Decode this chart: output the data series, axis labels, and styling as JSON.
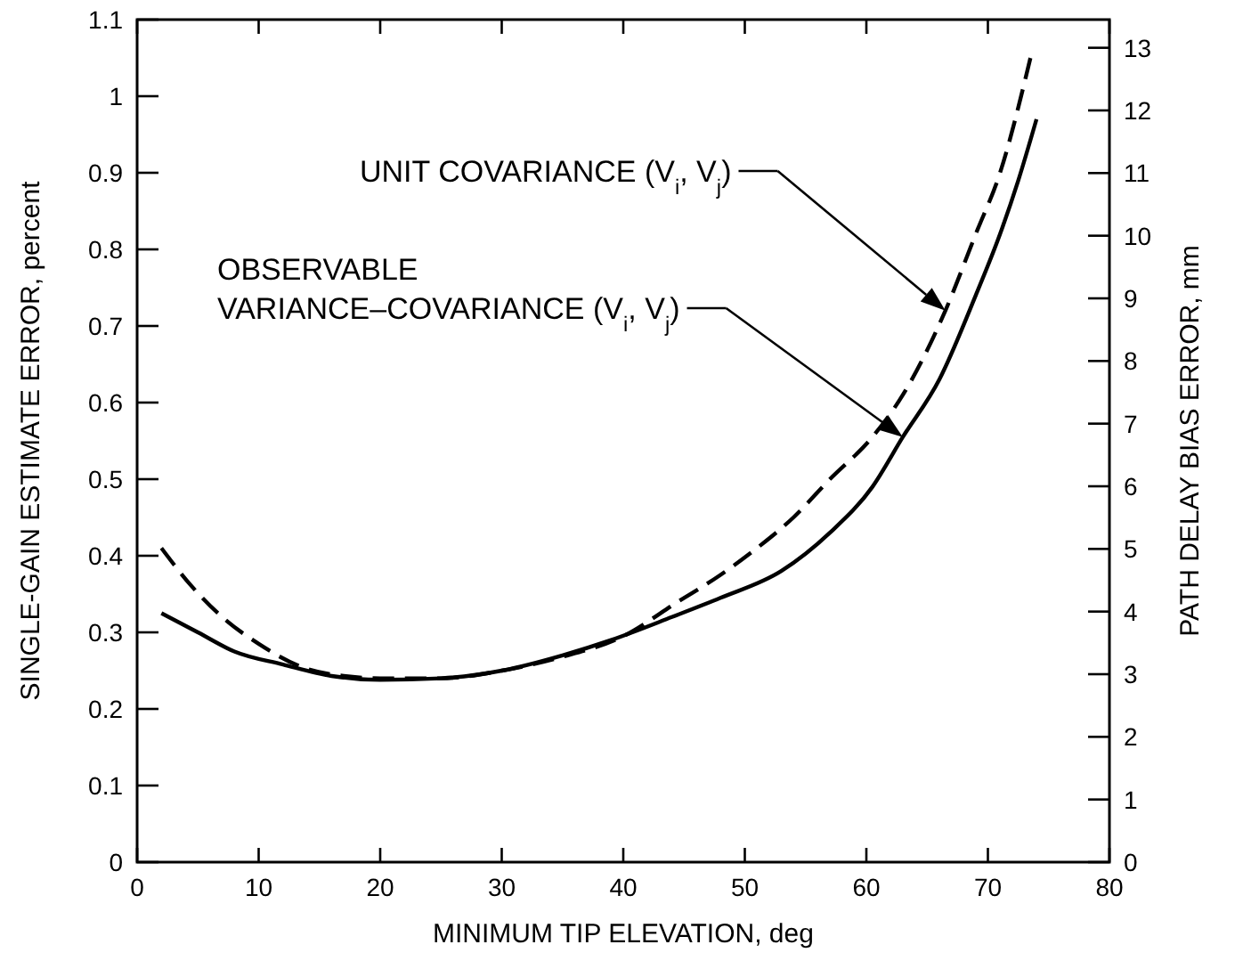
{
  "chart_data": {
    "type": "line",
    "xlabel": "MINIMUM TIP ELEVATION, deg",
    "ylabel": "SINGLE-GAIN ESTIMATE ERROR, percent",
    "y2label": "PATH DELAY BIAS ERROR, mm",
    "xlim": [
      0,
      80
    ],
    "xticks": [
      0,
      10,
      20,
      30,
      40,
      50,
      60,
      70,
      80
    ],
    "ylim": [
      0,
      1.1
    ],
    "yticks": [
      0,
      0.1,
      0.2,
      0.3,
      0.4,
      0.5,
      0.6,
      0.7,
      0.8,
      0.9,
      1.0,
      1.1
    ],
    "y2lim": [
      0,
      13.45
    ],
    "y2ticks": [
      0,
      1,
      2,
      3,
      4,
      5,
      6,
      7,
      8,
      9,
      10,
      11,
      12,
      13
    ],
    "grid": false,
    "series": [
      {
        "color": "#000000",
        "line_style": "solid",
        "x": [
          2,
          5,
          8,
          12,
          16,
          20,
          25,
          30,
          35,
          39,
          44,
          48,
          53,
          57,
          60.5,
          63,
          66,
          69,
          71,
          72.5,
          74
        ],
        "values": [
          0.325,
          0.3,
          0.275,
          0.258,
          0.243,
          0.238,
          0.24,
          0.25,
          0.27,
          0.29,
          0.32,
          0.345,
          0.38,
          0.43,
          0.49,
          0.555,
          0.63,
          0.74,
          0.82,
          0.89,
          0.97
        ]
      },
      {
        "color": "#000000",
        "line_style": "dashed",
        "x": [
          2,
          4.5,
          7,
          10,
          13.5,
          17,
          20,
          25,
          30,
          35,
          40,
          44.5,
          48,
          51,
          54,
          57,
          60.5,
          63,
          66.5,
          69,
          71,
          73.5
        ],
        "values": [
          0.41,
          0.36,
          0.32,
          0.285,
          0.255,
          0.243,
          0.24,
          0.24,
          0.25,
          0.268,
          0.295,
          0.34,
          0.375,
          0.41,
          0.45,
          0.5,
          0.555,
          0.61,
          0.72,
          0.82,
          0.9,
          1.05
        ]
      }
    ],
    "annotations": [
      "UNIT COVARIANCE (V$_{i}$, V$_{j}$)",
      "OBSERVABLE\nVARIANCE–COVARIANCE (V$_{i}$, V$_{j}$)"
    ]
  }
}
